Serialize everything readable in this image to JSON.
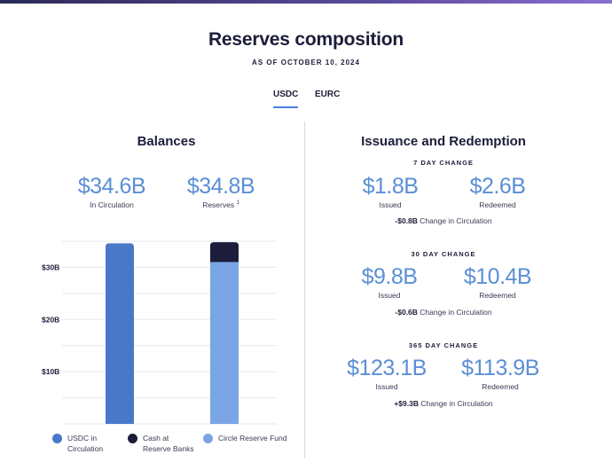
{
  "header": {
    "title": "Reserves composition",
    "as_of": "AS OF OCTOBER 10, 2024"
  },
  "tabs": [
    {
      "label": "USDC",
      "active": true
    },
    {
      "label": "EURC",
      "active": false
    }
  ],
  "balances": {
    "title": "Balances",
    "in_circulation": {
      "value": "$34.6B",
      "label": "In Circulation"
    },
    "reserves": {
      "value": "$34.8B",
      "label": "Reserves",
      "footnote": "1"
    }
  },
  "issuance": {
    "title": "Issuance and Redemption",
    "periods": [
      {
        "title": "7 DAY CHANGE",
        "issued": "$1.8B",
        "issued_label": "Issued",
        "redeemed": "$2.6B",
        "redeemed_label": "Redeemed",
        "change": "-$0.8B",
        "change_label": "Change in Circulation"
      },
      {
        "title": "30 DAY CHANGE",
        "issued": "$9.8B",
        "issued_label": "Issued",
        "redeemed": "$10.4B",
        "redeemed_label": "Redeemed",
        "change": "-$0.6B",
        "change_label": "Change in Circulation"
      },
      {
        "title": "365 DAY CHANGE",
        "issued": "$123.1B",
        "issued_label": "Issued",
        "redeemed": "$113.9B",
        "redeemed_label": "Redeemed",
        "change": "+$9.3B",
        "change_label": "Change in Circulation"
      }
    ]
  },
  "colors": {
    "usdc": "#4a78c8",
    "cash": "#1c1d3a",
    "fund": "#7aa5e6",
    "accent": "#5b8fd6"
  },
  "legend": [
    {
      "label_lines": [
        "USDC in",
        "Circulation"
      ],
      "color_key": "usdc",
      "icon": "circle-dot-icon"
    },
    {
      "label_lines": [
        "Cash at",
        "Reserve Banks"
      ],
      "color_key": "cash",
      "icon": "circle-dot-icon"
    },
    {
      "label_lines": [
        "Circle Reserve Fund"
      ],
      "color_key": "fund",
      "icon": "circle-dot-icon"
    }
  ],
  "chart_data": {
    "type": "bar",
    "stacked": true,
    "categories": [
      "In Circulation",
      "Reserves"
    ],
    "series": [
      {
        "name": "USDC in Circulation",
        "values": [
          34.6,
          0
        ]
      },
      {
        "name": "Circle Reserve Fund",
        "values": [
          0,
          31.0
        ]
      },
      {
        "name": "Cash at Reserve Banks",
        "values": [
          0,
          3.8
        ]
      }
    ],
    "yticks": [
      {
        "value": 10,
        "label": "$10B"
      },
      {
        "value": 20,
        "label": "$20B"
      },
      {
        "value": 30,
        "label": "$30B"
      }
    ],
    "ylim": [
      0,
      35
    ],
    "grid": true,
    "legend_position": "bottom"
  }
}
